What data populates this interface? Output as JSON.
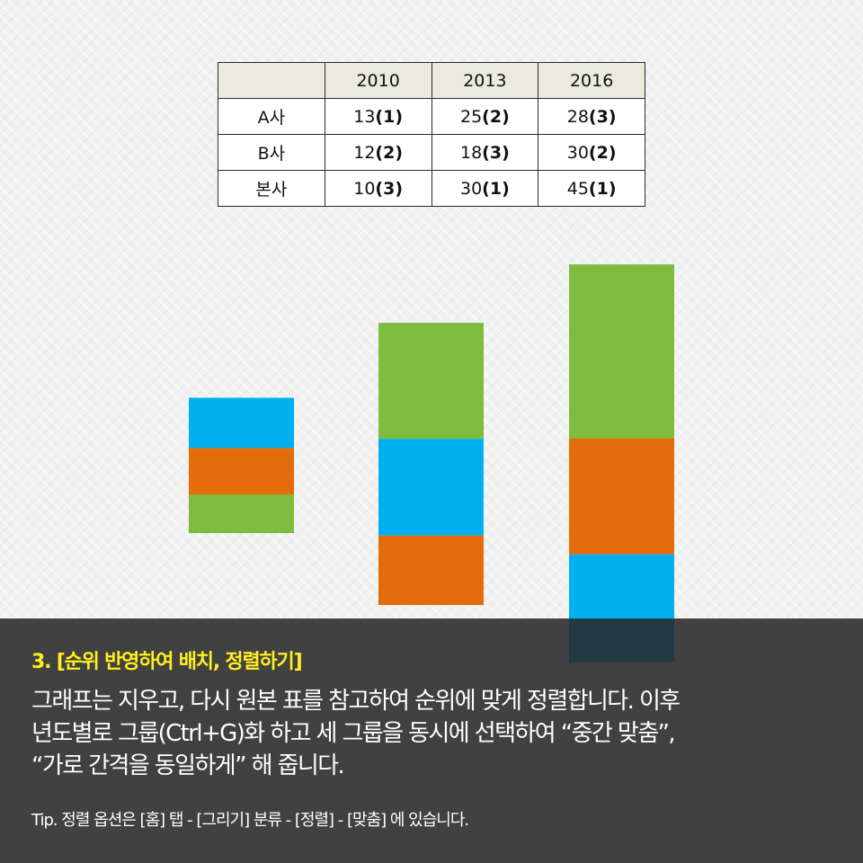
{
  "table": {
    "header": [
      "",
      "2010",
      "2013",
      "2016"
    ],
    "rows": [
      {
        "label": "A사",
        "cells": [
          {
            "value": "13",
            "rank": "(1)"
          },
          {
            "value": "25",
            "rank": "(2)"
          },
          {
            "value": "28",
            "rank": "(3)"
          }
        ]
      },
      {
        "label": "B사",
        "cells": [
          {
            "value": "12",
            "rank": "(2)"
          },
          {
            "value": "18",
            "rank": "(3)"
          },
          {
            "value": "30",
            "rank": "(2)"
          }
        ]
      },
      {
        "label": "본사",
        "cells": [
          {
            "value": "10",
            "rank": "(3)"
          },
          {
            "value": "30",
            "rank": "(1)"
          },
          {
            "value": "45",
            "rank": "(1)"
          }
        ]
      }
    ]
  },
  "chart_data": {
    "type": "bar",
    "stacking": "stacked, segments sorted by rank (rank 1 on top)",
    "categories": [
      "2010",
      "2013",
      "2016"
    ],
    "series": [
      {
        "name": "A사",
        "values": [
          13,
          25,
          28
        ],
        "color": "#00b0f0"
      },
      {
        "name": "B사",
        "values": [
          12,
          18,
          30
        ],
        "color": "#e46c0a"
      },
      {
        "name": "본사",
        "values": [
          10,
          30,
          45
        ],
        "color": "#7dbc3e"
      }
    ],
    "stack_order_top_to_bottom": [
      [
        "A사",
        "B사",
        "본사"
      ],
      [
        "본사",
        "A사",
        "B사"
      ],
      [
        "본사",
        "B사",
        "A사"
      ]
    ]
  },
  "overlay": {
    "title": "3. [순위 반영하여 배치, 정렬하기]",
    "title_color": "#ffef1f",
    "lines": [
      "그래프는 지우고, 다시 원본 표를 참고하여 순위에 맞게 정렬합니다. 이후",
      "년도별로 그룹(Ctrl+G)화 하고 세 그룹을 동시에 선택하여 “중간 맞춤”,",
      "“가로 간격을 동일하게” 해 줍니다."
    ],
    "tip": "Tip. 정렬 옵션은 [홈] 탭 - [그리기] 분류 - [정렬] - [맞춤] 에 있습니다."
  }
}
